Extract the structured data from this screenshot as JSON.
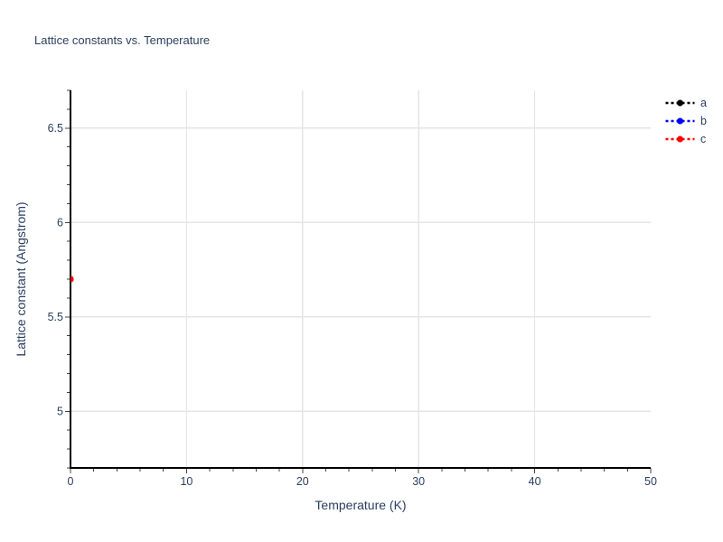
{
  "chart_data": {
    "type": "scatter",
    "title": "Lattice constants vs. Temperature",
    "xlabel": "Temperature (K)",
    "ylabel": "Lattice constant (Angstrom)",
    "xlim": [
      0,
      50
    ],
    "ylim": [
      4.7,
      6.7
    ],
    "x_major_ticks": [
      0,
      10,
      20,
      30,
      40,
      50
    ],
    "x_minor_tick_step": 2,
    "y_major_ticks": [
      5,
      5.5,
      6,
      6.5
    ],
    "y_minor_tick_step": 0.1,
    "x_gridlines": [
      10,
      20,
      30,
      40
    ],
    "y_gridlines": [
      5,
      5.5,
      6,
      6.5
    ],
    "grid": true,
    "legend_position": "right-outside-top",
    "series": [
      {
        "name": "a",
        "color": "#000000",
        "line_style": "dashed",
        "marker": "circle",
        "x": [
          0
        ],
        "y": [
          5.7
        ]
      },
      {
        "name": "b",
        "color": "#0000ff",
        "line_style": "dashed",
        "marker": "circle",
        "x": [
          0
        ],
        "y": [
          5.7
        ]
      },
      {
        "name": "c",
        "color": "#ff0000",
        "line_style": "dashed",
        "marker": "circle",
        "x": [
          0
        ],
        "y": [
          5.7
        ]
      }
    ],
    "colors": {
      "text": "#2a3f5f",
      "grid": "#e5e5e5",
      "tick": "#444444",
      "axis_line": "#000000",
      "background": "#ffffff"
    }
  }
}
